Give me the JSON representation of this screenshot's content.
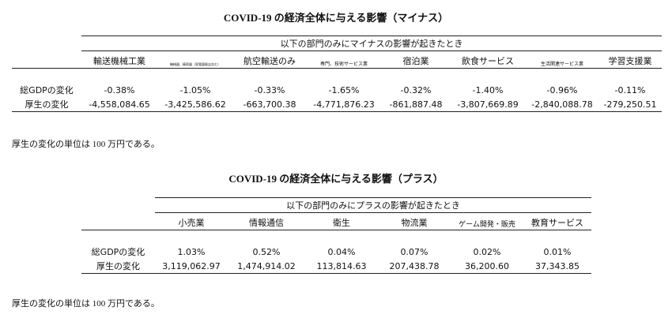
{
  "minus": {
    "title": "COVID-19 の経済全体に与える影響（マイナス）",
    "span_header": "以下の部門のみにマイナスの影響が起きたとき",
    "columns": [
      "輸送機械工業",
      "機械器、精密器（家電量販店含む）",
      "航空輸送のみ",
      "専門、技術サービス業",
      "宿泊業",
      "飲食サービス",
      "生活関連サービス業",
      "学習支援業"
    ],
    "rows": [
      {
        "label": "総GDPの変化",
        "values": [
          "-0.38%",
          "-1.05%",
          "-0.33%",
          "-1.65%",
          "-0.32%",
          "-1.40%",
          "-0.96%",
          "-0.11%"
        ]
      },
      {
        "label": "厚生の変化",
        "values": [
          "-4,558,084.65",
          "-3,425,586.62",
          "-663,700.38",
          "-4,771,876.23",
          "-861,887.48",
          "-3,807,669.89",
          "-2,840,088.78",
          "-279,250.51"
        ]
      }
    ],
    "note": "厚生の変化の単位は 100 万円である。"
  },
  "plus": {
    "title": "COVID-19 の経済全体に与える影響（プラス）",
    "span_header": "以下の部門のみにプラスの影響が起きたとき",
    "columns": [
      "小売業",
      "情報通信",
      "衛生",
      "物流業",
      "ゲーム開発・販売",
      "教育サービス"
    ],
    "rows": [
      {
        "label": "総GDPの変化",
        "values": [
          "1.03%",
          "0.52%",
          "0.04%",
          "0.07%",
          "0.02%",
          "0.01%"
        ]
      },
      {
        "label": "厚生の変化",
        "values": [
          "3,119,062.97",
          "1,474,914.02",
          "113,814.63",
          "207,438.78",
          "36,200.60",
          "37,343.85"
        ]
      }
    ],
    "note": "厚生の変化の単位は 100 万円である。"
  }
}
